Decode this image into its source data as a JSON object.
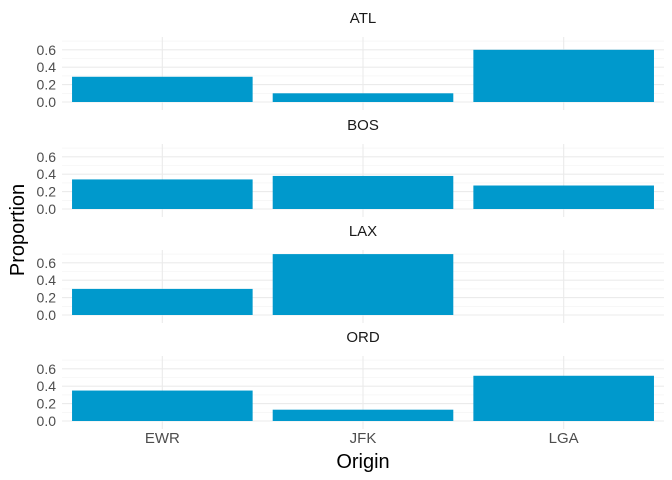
{
  "chart_data": {
    "type": "bar",
    "xlabel": "Origin",
    "ylabel": "Proportion",
    "categories": [
      "EWR",
      "JFK",
      "LGA"
    ],
    "ylim": [
      0,
      0.7
    ],
    "yticks": [
      0.0,
      0.2,
      0.4,
      0.6
    ],
    "ytick_labels": [
      "0.0",
      "0.2",
      "0.4",
      "0.6"
    ],
    "bar_color": "#0099CC",
    "grid": true,
    "panels": [
      {
        "title": "ATL",
        "values": [
          0.29,
          0.1,
          0.6
        ]
      },
      {
        "title": "BOS",
        "values": [
          0.34,
          0.38,
          0.27
        ]
      },
      {
        "title": "LAX",
        "values": [
          0.3,
          0.7,
          0.0
        ]
      },
      {
        "title": "ORD",
        "values": [
          0.35,
          0.13,
          0.52
        ]
      }
    ]
  }
}
